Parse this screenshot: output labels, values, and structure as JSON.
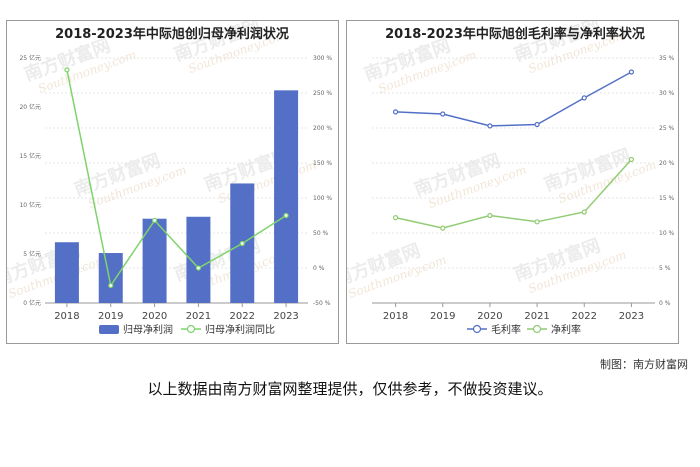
{
  "watermark": {
    "cn": "南方财富网",
    "en": "Southmoney.com"
  },
  "credit": "制图：南方财富网",
  "disclaimer": "以上数据由南方财富网整理提供，仅供参考，不做投资建议。",
  "chart_data": [
    {
      "type": "bar",
      "title": "2018-2023年中际旭创归母净利润状况",
      "categories": [
        "2018",
        "2019",
        "2020",
        "2021",
        "2022",
        "2023"
      ],
      "series": [
        {
          "name": "归母净利润",
          "type": "bar",
          "axis": "left",
          "color": "#5470c6",
          "values": [
            6.2,
            5.1,
            8.6,
            8.8,
            12.2,
            21.7
          ]
        },
        {
          "name": "归母净利润同比",
          "type": "line",
          "axis": "right",
          "color": "#7ed36a",
          "values": [
            283,
            -25,
            68,
            0,
            35,
            75
          ]
        }
      ],
      "left_axis": {
        "ticks": [
          "0 亿元",
          "5 亿元",
          "10 亿元",
          "15 亿元",
          "20 亿元",
          "25 亿元"
        ],
        "range": [
          0,
          25
        ]
      },
      "right_axis": {
        "ticks": [
          "-50 %",
          "0 %",
          "50 %",
          "100 %",
          "150 %",
          "200 %",
          "250 %",
          "300 %"
        ],
        "range": [
          -50,
          300
        ]
      },
      "grid": true,
      "legend": "bottom"
    },
    {
      "type": "line",
      "title": "2018-2023年中际旭创毛利率与净利率状况",
      "categories": [
        "2018",
        "2019",
        "2020",
        "2021",
        "2022",
        "2023"
      ],
      "series": [
        {
          "name": "毛利率",
          "color": "#5470c6",
          "values": [
            27.3,
            27.0,
            25.3,
            25.5,
            29.3,
            33.0
          ]
        },
        {
          "name": "净利率",
          "color": "#91cc75",
          "values": [
            12.2,
            10.7,
            12.5,
            11.6,
            13.0,
            20.5
          ]
        }
      ],
      "right_axis": {
        "ticks": [
          "0 %",
          "5 %",
          "10 %",
          "15 %",
          "20 %",
          "25 %",
          "30 %",
          "35 %"
        ],
        "range": [
          0,
          35
        ]
      },
      "grid": true,
      "legend": "bottom"
    }
  ]
}
